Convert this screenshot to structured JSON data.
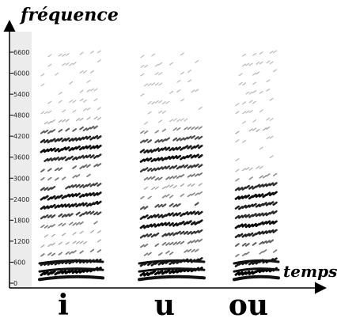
{
  "chart_data": {
    "type": "spectrogram",
    "ylabel": "fréquence",
    "xlabel": "temps",
    "y_ticks": [
      0,
      600,
      1200,
      1800,
      2400,
      3000,
      3600,
      4200,
      4800,
      5400,
      6000,
      6600
    ],
    "y_range": [
      0,
      7000
    ],
    "grid": false,
    "categories": [
      "i",
      "u",
      "ou"
    ],
    "formants_hz": {
      "i": [
        300,
        2300,
        3800
      ],
      "u": [
        300,
        1700,
        3600
      ],
      "ou": [
        300,
        1600,
        2400
      ]
    }
  }
}
